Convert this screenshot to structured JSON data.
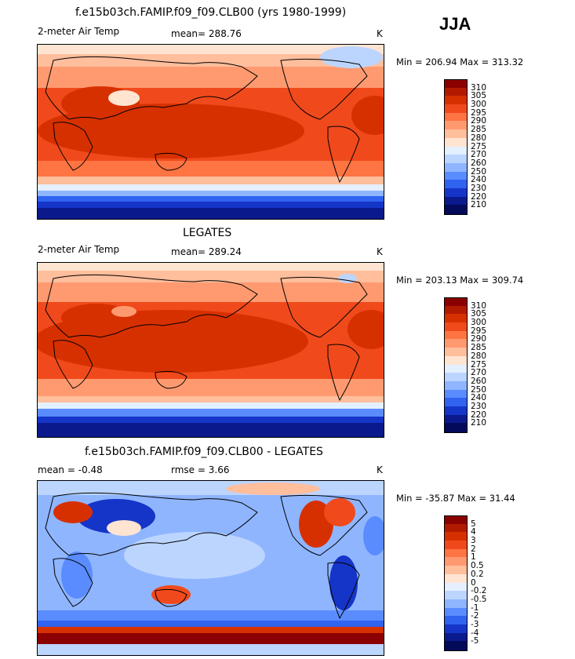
{
  "season": "JJA",
  "panels": [
    {
      "title": "f.e15b03ch.FAMIP.f09_f09.CLB00 (yrs 1980-1999)",
      "left_label": "2-meter Air Temp",
      "stat_label": "mean=",
      "stat_value": "288.76",
      "units": "K",
      "min_max": "Min = 206.94 Max = 313.32",
      "colorbar": {
        "labels": [
          "310",
          "305",
          "300",
          "295",
          "290",
          "285",
          "280",
          "275",
          "270",
          "260",
          "250",
          "240",
          "230",
          "220",
          "210"
        ],
        "colors": [
          "#8b0000",
          "#b21a00",
          "#d73000",
          "#f04a1c",
          "#ff7443",
          "#ff9a70",
          "#ffbe9c",
          "#ffe4d2",
          "#e4f0ff",
          "#bcd5ff",
          "#8fb5ff",
          "#5a8cff",
          "#2f63f0",
          "#1535c8",
          "#0a1a8c",
          "#040a5a"
        ]
      }
    },
    {
      "title": "LEGATES",
      "left_label": "2-meter Air Temp",
      "stat_label": "mean=",
      "stat_value": "289.24",
      "units": "K",
      "min_max": "Min = 203.13 Max = 309.74",
      "colorbar": {
        "labels": [
          "310",
          "305",
          "300",
          "295",
          "290",
          "285",
          "280",
          "275",
          "270",
          "260",
          "250",
          "240",
          "230",
          "220",
          "210"
        ],
        "colors": [
          "#8b0000",
          "#b21a00",
          "#d73000",
          "#f04a1c",
          "#ff7443",
          "#ff9a70",
          "#ffbe9c",
          "#ffe4d2",
          "#e4f0ff",
          "#bcd5ff",
          "#8fb5ff",
          "#5a8cff",
          "#2f63f0",
          "#1535c8",
          "#0a1a8c",
          "#040a5a"
        ]
      }
    },
    {
      "title": "f.e15b03ch.FAMIP.f09_f09.CLB00 - LEGATES",
      "left_label": "mean =",
      "left_value": "-0.48",
      "stat_label": "rmse =",
      "stat_value": "3.66",
      "units": "K",
      "min_max": "Min = -35.87 Max = 31.44",
      "colorbar": {
        "labels": [
          "5",
          "4",
          "3",
          "2",
          "1",
          "0.5",
          "0.2",
          "0",
          "-0.2",
          "-0.5",
          "-1",
          "-2",
          "-3",
          "-4",
          "-5"
        ],
        "colors": [
          "#8b0000",
          "#b21a00",
          "#d73000",
          "#f04a1c",
          "#ff7443",
          "#ff9a70",
          "#ffbe9c",
          "#ffe4d2",
          "#e4f0ff",
          "#bcd5ff",
          "#8fb5ff",
          "#5a8cff",
          "#2f63f0",
          "#1535c8",
          "#0a1a8c",
          "#040a5a"
        ]
      }
    }
  ]
}
